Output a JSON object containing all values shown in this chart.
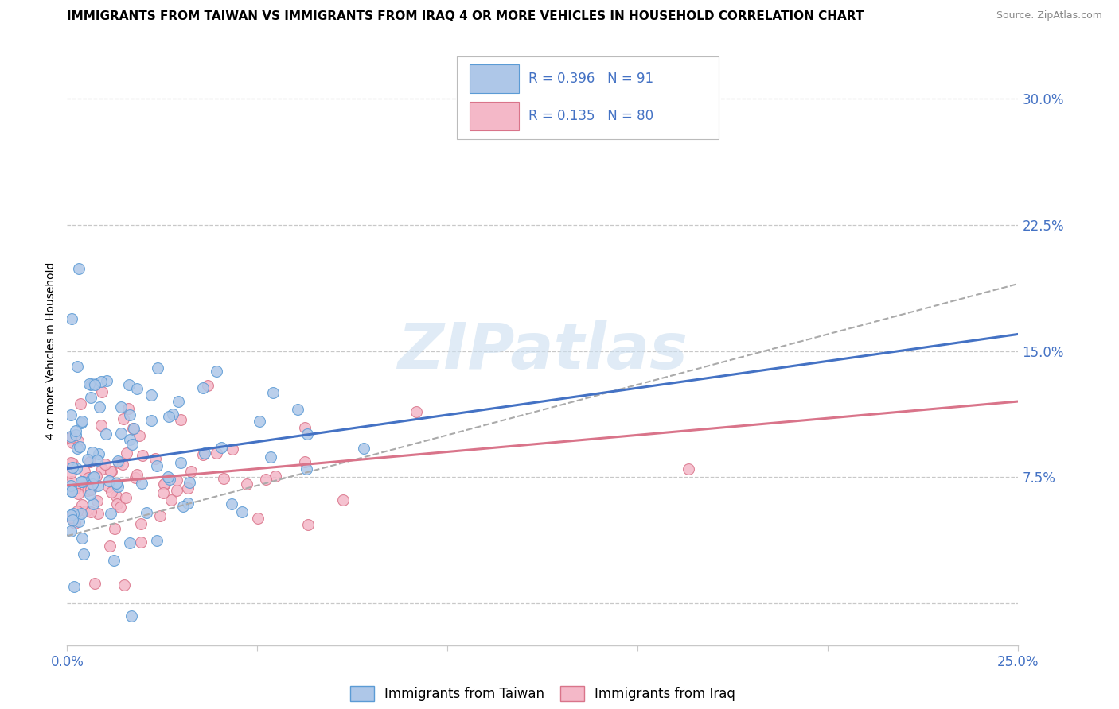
{
  "title": "IMMIGRANTS FROM TAIWAN VS IMMIGRANTS FROM IRAQ 4 OR MORE VEHICLES IN HOUSEHOLD CORRELATION CHART",
  "source": "Source: ZipAtlas.com",
  "ylabel": "4 or more Vehicles in Household",
  "xlim": [
    0.0,
    0.25
  ],
  "ylim": [
    -0.025,
    0.325
  ],
  "yticks": [
    0.0,
    0.075,
    0.15,
    0.225,
    0.3
  ],
  "ytick_labels": [
    "",
    "7.5%",
    "15.0%",
    "22.5%",
    "30.0%"
  ],
  "xticks": [
    0.0,
    0.05,
    0.1,
    0.15,
    0.2,
    0.25
  ],
  "xtick_labels": [
    "0.0%",
    "",
    "",
    "",
    "",
    "25.0%"
  ],
  "taiwan_R": 0.396,
  "taiwan_N": 91,
  "iraq_R": 0.135,
  "iraq_N": 80,
  "taiwan_scatter_face": "#aec7e8",
  "taiwan_scatter_edge": "#5b9bd5",
  "iraq_scatter_face": "#f4b8c8",
  "iraq_scatter_edge": "#d9748a",
  "taiwan_line_color": "#4472c4",
  "iraq_line_color": "#d9748a",
  "grid_color": "#c8c8c8",
  "label_color": "#4472c4",
  "watermark": "ZIPatlas",
  "legend_taiwan": "Immigrants from Taiwan",
  "legend_iraq": "Immigrants from Iraq",
  "title_fontsize": 11,
  "tick_fontsize": 12,
  "taiwan_slope": 0.32,
  "taiwan_intercept": 0.08,
  "iraq_slope": 0.2,
  "iraq_intercept": 0.07,
  "dash_slope": 0.6,
  "dash_intercept": 0.04
}
